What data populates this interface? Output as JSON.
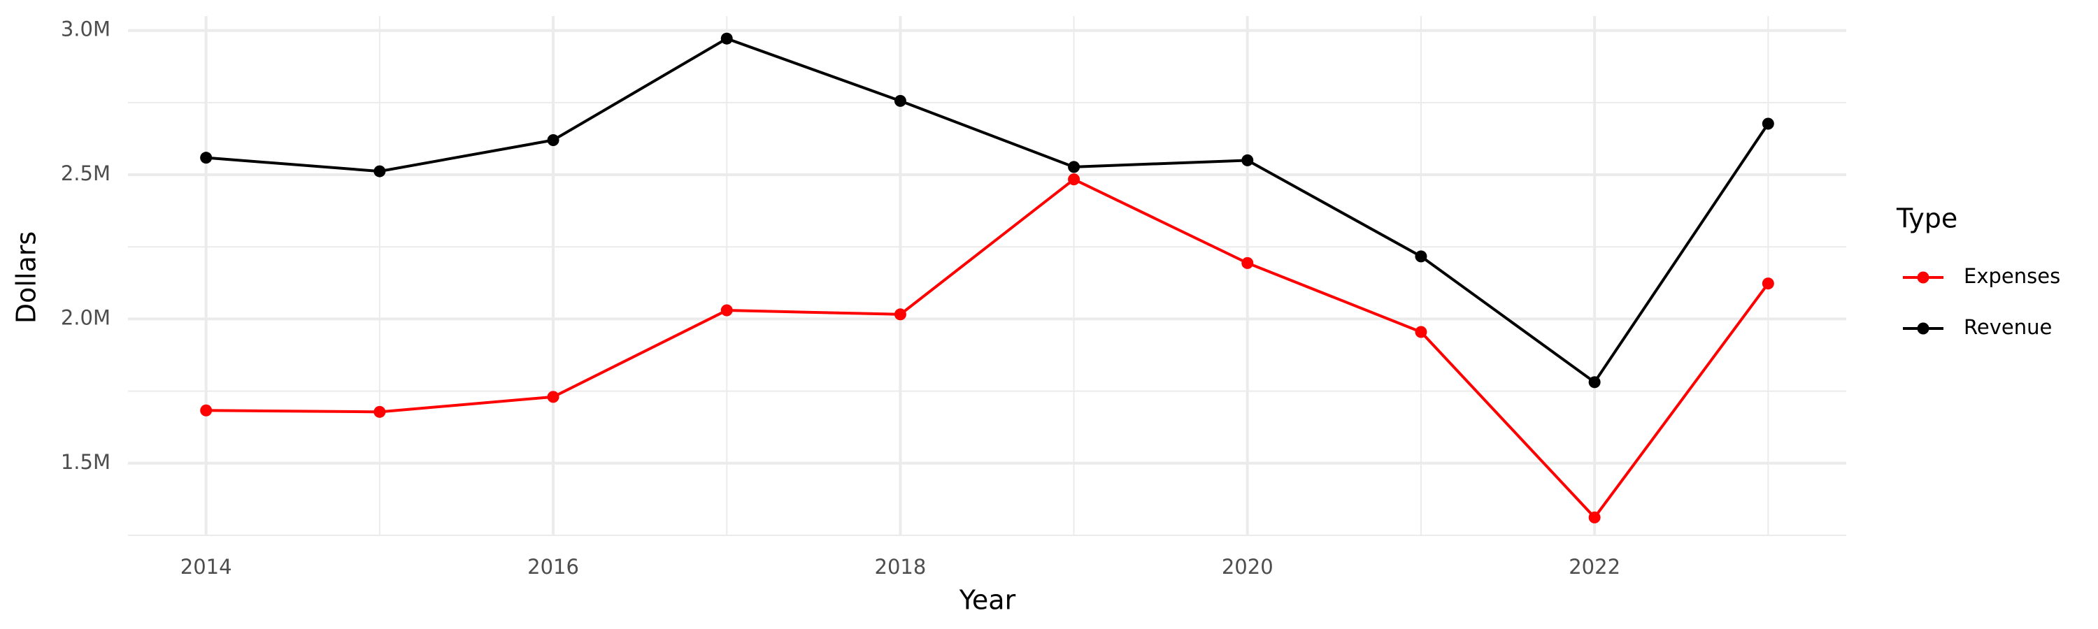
{
  "chart_data": {
    "type": "line",
    "x_label": "Year",
    "y_label": "Dollars",
    "legend_title": "Type",
    "legend": "right",
    "grid": true,
    "x": [
      2014,
      2015,
      2016,
      2017,
      2018,
      2019,
      2020,
      2021,
      2022,
      2023
    ],
    "series": [
      {
        "name": "Expenses",
        "color": "#ff0000",
        "values": [
          1683000,
          1678000,
          1730000,
          2030000,
          2016000,
          2484000,
          2194000,
          1955000,
          1312000,
          2123000
        ]
      },
      {
        "name": "Revenue",
        "color": "#000000",
        "values": [
          2559000,
          2512000,
          2620000,
          2972000,
          2756000,
          2527000,
          2550000,
          2217000,
          1781000,
          2677000
        ]
      }
    ],
    "xlim": [
      2013.55,
      2023.45
    ],
    "xticks": [
      2014,
      2016,
      2018,
      2020,
      2022
    ],
    "xminor": [
      2015,
      2017,
      2019,
      2021,
      2023
    ],
    "ylim": [
      1250000,
      3050000
    ],
    "yticks": [
      {
        "value": 1500000,
        "label": "1.5M"
      },
      {
        "value": 2000000,
        "label": "2.0M"
      },
      {
        "value": 2500000,
        "label": "2.5M"
      },
      {
        "value": 3000000,
        "label": "3.0M"
      }
    ],
    "yminor": [
      1250000,
      1750000,
      2250000,
      2750000
    ]
  }
}
